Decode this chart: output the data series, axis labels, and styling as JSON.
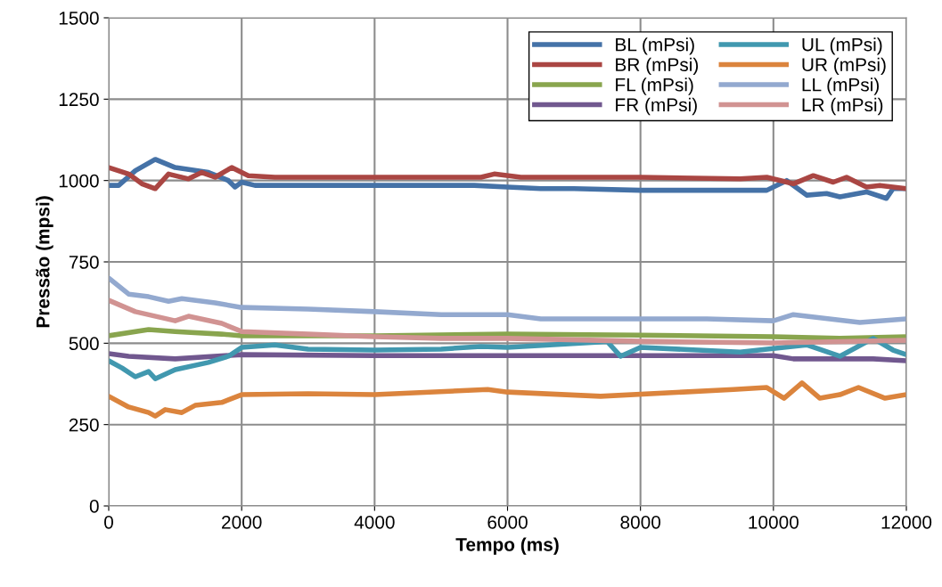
{
  "chart_data": {
    "type": "line",
    "xlabel": "Tempo (ms)",
    "ylabel": "Pressão (mpsi)",
    "xlim": [
      0,
      12000
    ],
    "xticks": [
      0,
      2000,
      4000,
      6000,
      8000,
      10000,
      12000
    ],
    "ylim": [
      0,
      1500
    ],
    "yticks": [
      0,
      250,
      500,
      750,
      1000,
      1250,
      1500
    ],
    "grid": true,
    "legend": "top right",
    "marker": "none",
    "line_style": "solid",
    "series": [
      {
        "name": "BL (mPsi)",
        "color": "#4572a7",
        "x": [
          0,
          150,
          400,
          700,
          1000,
          1500,
          1800,
          1900,
          2000,
          2200,
          3000,
          4000,
          5500,
          6000,
          6500,
          7000,
          8000,
          9000,
          9900,
          10200,
          10500,
          10800,
          11000,
          11400,
          11700,
          11800,
          12000
        ],
        "values": [
          985,
          985,
          1030,
          1065,
          1040,
          1025,
          1000,
          980,
          995,
          985,
          985,
          985,
          985,
          980,
          975,
          975,
          970,
          970,
          970,
          1000,
          955,
          960,
          950,
          965,
          945,
          975,
          975
        ]
      },
      {
        "name": "BR (mPsi)",
        "color": "#aa4643",
        "x": [
          0,
          300,
          500,
          700,
          900,
          1200,
          1400,
          1600,
          1850,
          2100,
          2500,
          4000,
          5600,
          5800,
          6200,
          8000,
          9500,
          9900,
          10300,
          10600,
          10900,
          11100,
          11400,
          11600,
          12000
        ],
        "values": [
          1040,
          1020,
          990,
          975,
          1020,
          1005,
          1025,
          1010,
          1040,
          1015,
          1010,
          1010,
          1010,
          1020,
          1010,
          1010,
          1005,
          1010,
          990,
          1015,
          995,
          1010,
          980,
          985,
          975
        ]
      },
      {
        "name": "FL (mPsi)",
        "color": "#89a54e",
        "x": [
          0,
          600,
          1000,
          1700,
          2000,
          4000,
          6000,
          8000,
          10000,
          11000,
          12000
        ],
        "values": [
          523,
          542,
          536,
          528,
          523,
          523,
          528,
          525,
          520,
          515,
          520
        ]
      },
      {
        "name": "FR (mPsi)",
        "color": "#71588f",
        "x": [
          0,
          300,
          1000,
          2000,
          4000,
          6000,
          8000,
          10000,
          10300,
          11500,
          12000
        ],
        "values": [
          468,
          460,
          452,
          465,
          462,
          462,
          462,
          462,
          452,
          452,
          446
        ]
      },
      {
        "name": "UL (mPsi)",
        "color": "#4198af",
        "x": [
          0,
          200,
          400,
          600,
          700,
          1000,
          1500,
          1800,
          2000,
          2500,
          3000,
          4000,
          5000,
          5600,
          6000,
          7500,
          7700,
          8000,
          9500,
          10500,
          11000,
          11500,
          11800,
          12000
        ],
        "values": [
          446,
          424,
          397,
          413,
          391,
          419,
          441,
          460,
          487,
          495,
          482,
          479,
          482,
          490,
          487,
          505,
          460,
          487,
          473,
          495,
          460,
          515,
          479,
          465
        ]
      },
      {
        "name": "UR (mPsi)",
        "color": "#db843d",
        "x": [
          0,
          300,
          600,
          700,
          850,
          1100,
          1300,
          1700,
          2000,
          3000,
          4000,
          5700,
          6000,
          7400,
          9400,
          9900,
          10160,
          10430,
          10700,
          11000,
          11280,
          11680,
          12000
        ],
        "values": [
          337,
          304,
          287,
          276,
          296,
          287,
          309,
          318,
          342,
          345,
          342,
          358,
          350,
          337,
          358,
          364,
          331,
          378,
          331,
          342,
          364,
          331,
          342
        ]
      },
      {
        "name": "LL (mPsi)",
        "color": "#93a9cf",
        "x": [
          0,
          300,
          600,
          900,
          1100,
          1600,
          2000,
          3000,
          4000,
          5000,
          6000,
          6500,
          9000,
          10000,
          10300,
          11300,
          12000
        ],
        "values": [
          700,
          651,
          643,
          629,
          637,
          624,
          610,
          605,
          597,
          588,
          588,
          575,
          575,
          569,
          588,
          564,
          575
        ]
      },
      {
        "name": "LR (mPsi)",
        "color": "#d19392",
        "x": [
          0,
          400,
          1000,
          1200,
          1700,
          2000,
          3000,
          4000,
          5000,
          6000,
          8000,
          10000,
          12000
        ],
        "values": [
          632,
          597,
          569,
          583,
          561,
          536,
          528,
          520,
          515,
          515,
          506,
          501,
          509
        ]
      }
    ]
  }
}
